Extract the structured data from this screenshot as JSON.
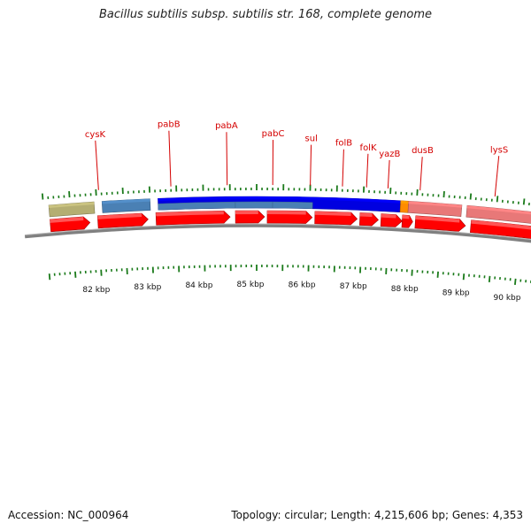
{
  "title": "Bacillus subtilis subsp. subtilis str. 168, complete genome",
  "footer": {
    "accession": "Accession: NC_000964",
    "summary": "Topology: circular; Length: 4,215,606 bp; Genes: 4,353"
  },
  "colors": {
    "cds_red": "#ff0000",
    "gene_blue": "#0000e0",
    "steel_blue": "#4a80b4",
    "salmon": "#e87878",
    "olive": "#b4ae72",
    "orange": "#ff8c00",
    "pink": "#ffa8d8",
    "label_red": "#d40000",
    "tick_green": "#1a7a1a",
    "backbone_gray": "#808080"
  },
  "scale": {
    "unit": "kbp",
    "labels": [
      "82 kbp",
      "83 kbp",
      "84 kbp",
      "85 kbp",
      "86 kbp",
      "87 kbp",
      "88 kbp",
      "89 kbp",
      "90 kbp"
    ],
    "positions_kbp": [
      82,
      83,
      84,
      85,
      86,
      87,
      88,
      89,
      90
    ]
  },
  "gene_labels": [
    "cysK",
    "pabB",
    "pabA",
    "pabC",
    "sul",
    "folB",
    "folK",
    "yazB",
    "dusB",
    "lysS"
  ],
  "features": {
    "upper_track": [
      {
        "color_key": "olive",
        "start_kbp": 81.1,
        "end_kbp": 81.95
      },
      {
        "color_key": "steel_blue",
        "start_kbp": 82.1,
        "end_kbp": 83.0
      },
      {
        "color_key": "gene_blue",
        "start_kbp": 83.15,
        "end_kbp": 87.7
      },
      {
        "color_key": "orange",
        "start_kbp": 87.7,
        "end_kbp": 87.85
      },
      {
        "color_key": "salmon",
        "start_kbp": 87.85,
        "end_kbp": 88.85
      },
      {
        "color_key": "salmon",
        "start_kbp": 88.95,
        "end_kbp": 90.3
      },
      {
        "color_key": "pink",
        "start_kbp": 90.45,
        "end_kbp": 91.2
      }
    ],
    "cds_track": [
      {
        "start_kbp": 81.1,
        "end_kbp": 81.85
      },
      {
        "start_kbp": 82.0,
        "end_kbp": 82.95
      },
      {
        "start_kbp": 83.1,
        "end_kbp": 84.5
      },
      {
        "start_kbp": 84.6,
        "end_kbp": 85.15
      },
      {
        "start_kbp": 85.2,
        "end_kbp": 86.05
      },
      {
        "start_kbp": 86.1,
        "end_kbp": 86.9
      },
      {
        "start_kbp": 86.95,
        "end_kbp": 87.3
      },
      {
        "start_kbp": 87.35,
        "end_kbp": 87.75
      },
      {
        "start_kbp": 87.75,
        "end_kbp": 87.95
      },
      {
        "start_kbp": 88.0,
        "end_kbp": 88.95
      },
      {
        "start_kbp": 89.05,
        "end_kbp": 90.45
      }
    ],
    "blue_sub_blocks": [
      {
        "start_kbp": 83.15,
        "end_kbp": 84.6
      },
      {
        "start_kbp": 84.6,
        "end_kbp": 85.3
      },
      {
        "start_kbp": 85.3,
        "end_kbp": 86.05
      }
    ]
  }
}
